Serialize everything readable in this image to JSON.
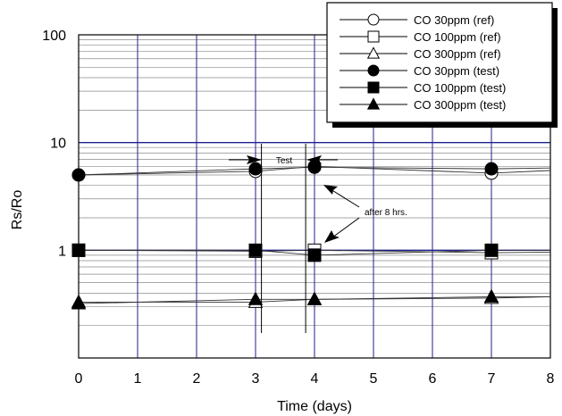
{
  "chart_data": {
    "type": "line",
    "title": "",
    "xlabel": "Time (days)",
    "ylabel": "Rs/Ro",
    "xlim": [
      0,
      8
    ],
    "ylim": [
      0.1,
      100
    ],
    "y_scale": "log",
    "grid": true,
    "legend_position": "top-right",
    "x_ticks": [
      "0",
      "1",
      "2",
      "3",
      "4",
      "5",
      "6",
      "7",
      "8"
    ],
    "y_ticks": [
      {
        "value": 100,
        "label": "100"
      },
      {
        "value": 10,
        "label": "10"
      },
      {
        "value": 1,
        "label": "1"
      }
    ],
    "series": [
      {
        "name": "CO 30ppm (ref)",
        "marker": "circle",
        "filled": false,
        "x": [
          0,
          3,
          4,
          7
        ],
        "y": [
          5.0,
          5.4,
          6.0,
          5.2
        ],
        "line_end": 5.5
      },
      {
        "name": "CO 100ppm (ref)",
        "marker": "square",
        "filled": false,
        "x": [
          0,
          3,
          4,
          7
        ],
        "y": [
          1.0,
          0.98,
          1.0,
          0.95
        ],
        "line_end": 0.96
      },
      {
        "name": "CO 300ppm (ref)",
        "marker": "triangle",
        "filled": false,
        "x": [
          0,
          3,
          4,
          7
        ],
        "y": [
          0.33,
          0.33,
          0.35,
          0.36
        ],
        "line_end": 0.37
      },
      {
        "name": "CO 30ppm (test)",
        "marker": "circle",
        "filled": true,
        "x": [
          0,
          3,
          4,
          7
        ],
        "y": [
          5.0,
          5.7,
          5.9,
          5.7
        ],
        "line_end": 5.8
      },
      {
        "name": "CO 100ppm (test)",
        "marker": "square",
        "filled": true,
        "x": [
          0,
          3,
          4,
          7
        ],
        "y": [
          1.0,
          1.0,
          0.9,
          1.0
        ],
        "line_end": 1.0
      },
      {
        "name": "CO 300ppm (test)",
        "marker": "triangle",
        "filled": true,
        "x": [
          0,
          3,
          4,
          7
        ],
        "y": [
          0.32,
          0.35,
          0.35,
          0.37
        ],
        "line_end": 0.37
      }
    ],
    "annotations": {
      "test_label": "Test",
      "after_label": "after 8 hrs.",
      "test_window_x": [
        3.1,
        3.85
      ]
    }
  },
  "colors": {
    "grid_major": "#1f1f8f",
    "grid_minor": "#8a8a8a",
    "axis": "#000000",
    "series_line": "#333333",
    "marker": "#000000"
  }
}
